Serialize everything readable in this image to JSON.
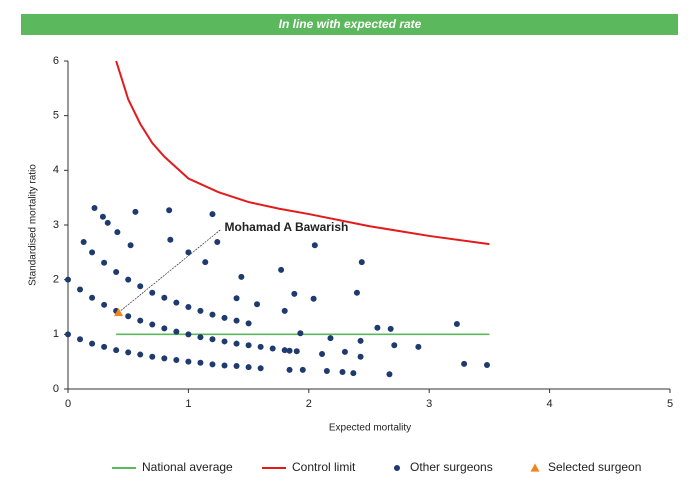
{
  "chart_data": {
    "type": "scatter",
    "title": "In line with expected rate",
    "title_color": "#5cb85c",
    "x_label": "Expected mortality",
    "y_label": "Standardised mortality ratio",
    "xlim": [
      0,
      5
    ],
    "ylim": [
      0,
      6
    ],
    "xticks": [
      0,
      1,
      2,
      3,
      4,
      5
    ],
    "yticks": [
      0,
      1,
      2,
      3,
      4,
      5,
      6
    ],
    "grid": false,
    "legend": "bottom",
    "series": [
      {
        "name": "National average",
        "type": "line",
        "color": "#5cb85c",
        "x": [
          0.4,
          3.5
        ],
        "values": [
          1,
          1
        ]
      },
      {
        "name": "Control limit",
        "type": "line",
        "color": "#e31a1c",
        "x": [
          0.4,
          0.5,
          0.6,
          0.7,
          0.8,
          1.0,
          1.25,
          1.5,
          1.75,
          2,
          2.5,
          3,
          3.5
        ],
        "values": [
          6,
          5.3,
          4.85,
          4.5,
          4.25,
          3.85,
          3.6,
          3.42,
          3.3,
          3.2,
          2.98,
          2.8,
          2.65
        ]
      },
      {
        "name": "Other surgeons",
        "type": "scatter",
        "marker": "circle",
        "color": "#1f3a6e",
        "x": [
          0,
          0.1,
          0.2,
          0.3,
          0.4,
          0.5,
          0.6,
          0.7,
          0.8,
          0.9,
          1,
          1.1,
          1.2,
          1.3,
          1.4,
          1.5,
          1.6,
          0,
          0.1,
          0.2,
          0.3,
          0.4,
          0.5,
          0.6,
          0.7,
          0.8,
          0.9,
          1,
          1.1,
          1.2,
          1.3,
          1.4,
          1.5,
          1.6,
          1.7,
          1.8,
          1.9,
          0.2,
          0.3,
          0.4,
          0.5,
          0.6,
          0.7,
          0.8,
          0.9,
          1,
          1.1,
          1.2,
          1.3,
          1.4,
          1.5,
          0.22,
          0.29,
          0.33,
          0.41,
          0.13,
          0.56,
          0.84,
          1.2,
          0.85,
          0.52,
          1.0,
          1.24,
          1.14,
          1.44,
          1.77,
          2.05,
          2.44,
          1.88,
          2.04,
          2.4,
          1.4,
          1.57,
          1.8,
          2.57,
          2.68,
          3.23,
          2.91,
          2.71,
          2.18,
          2.43,
          2.3,
          2.11,
          2.43,
          2.28,
          2.37,
          2.67,
          2.15,
          1.95,
          3.29,
          3.48,
          1.84,
          1.84,
          1.93
        ],
        "values": [
          1,
          0.91,
          0.83,
          0.77,
          0.71,
          0.67,
          0.63,
          0.59,
          0.56,
          0.53,
          0.5,
          0.48,
          0.45,
          0.43,
          0.42,
          0.4,
          0.38,
          2,
          1.82,
          1.67,
          1.54,
          1.43,
          1.33,
          1.25,
          1.18,
          1.11,
          1.05,
          1,
          0.95,
          0.91,
          0.87,
          0.83,
          0.8,
          0.77,
          0.74,
          0.71,
          0.69,
          2.5,
          2.31,
          2.14,
          2,
          1.88,
          1.76,
          1.67,
          1.58,
          1.5,
          1.43,
          1.36,
          1.3,
          1.25,
          1.2,
          3.31,
          3.15,
          3.04,
          2.87,
          2.69,
          3.24,
          3.27,
          3.2,
          2.73,
          2.63,
          2.5,
          2.69,
          2.32,
          2.05,
          2.18,
          2.63,
          2.32,
          1.74,
          1.65,
          1.76,
          1.66,
          1.55,
          1.43,
          1.12,
          1.1,
          1.19,
          0.77,
          0.8,
          0.93,
          0.88,
          0.68,
          0.64,
          0.59,
          0.31,
          0.29,
          0.27,
          0.33,
          0.35,
          0.46,
          0.44,
          0.35,
          0.7,
          1.02
        ]
      },
      {
        "name": "Selected surgeon",
        "type": "scatter",
        "marker": "triangle",
        "color": "#f0861e",
        "x": [
          0.42
        ],
        "values": [
          1.4
        ]
      }
    ],
    "annotations": [
      {
        "text": "Mohamad A Bawarish",
        "x": 1.3,
        "y": 2.95
      }
    ]
  }
}
